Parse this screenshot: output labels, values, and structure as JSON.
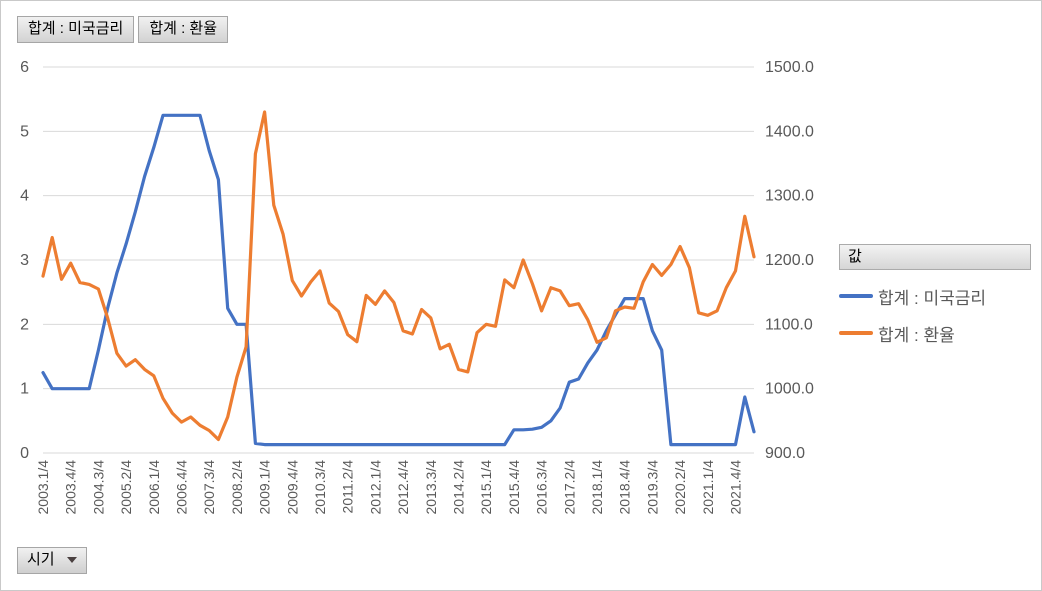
{
  "field_buttons": [
    {
      "label": "합계 : 미국금리"
    },
    {
      "label": "합계 : 환율"
    }
  ],
  "legend": {
    "header": "값",
    "items": [
      {
        "label": "합계 : 미국금리",
        "color": "#4472C4"
      },
      {
        "label": "합계 : 환율",
        "color": "#ED7D31"
      }
    ]
  },
  "axis_field_button": {
    "label": "시기"
  },
  "colors": {
    "grid": "#D9D9D9",
    "tick_label": "#595959",
    "series_blue": "#4472C4",
    "series_orange": "#ED7D31"
  },
  "chart_data": {
    "type": "line",
    "title": "",
    "legend_position": "right",
    "grid": true,
    "x_label_every": 3,
    "left_axis": {
      "min": 0,
      "max": 6,
      "ticks": [
        "0",
        "1",
        "2",
        "3",
        "4",
        "5",
        "6"
      ]
    },
    "right_axis": {
      "min": 900,
      "max": 1500,
      "ticks": [
        "900.0",
        "1000.0",
        "1100.0",
        "1200.0",
        "1300.0",
        "1400.0",
        "1500.0"
      ]
    },
    "categories": [
      "2003.1/4",
      "2003.2/4",
      "2003.3/4",
      "2003.4/4",
      "2004.1/4",
      "2004.2/4",
      "2004.3/4",
      "2004.4/4",
      "2005.1/4",
      "2005.2/4",
      "2005.3/4",
      "2005.4/4",
      "2006.1/4",
      "2006.2/4",
      "2006.3/4",
      "2006.4/4",
      "2007.1/4",
      "2007.2/4",
      "2007.3/4",
      "2007.4/4",
      "2008.1/4",
      "2008.2/4",
      "2008.3/4",
      "2008.4/4",
      "2009.1/4",
      "2009.2/4",
      "2009.3/4",
      "2009.4/4",
      "2010.1/4",
      "2010.2/4",
      "2010.3/4",
      "2010.4/4",
      "2011.1/4",
      "2011.2/4",
      "2011.3/4",
      "2011.4/4",
      "2012.1/4",
      "2012.2/4",
      "2012.3/4",
      "2012.4/4",
      "2013.1/4",
      "2013.2/4",
      "2013.3/4",
      "2013.4/4",
      "2014.1/4",
      "2014.2/4",
      "2014.3/4",
      "2014.4/4",
      "2015.1/4",
      "2015.2/4",
      "2015.3/4",
      "2015.4/4",
      "2016.1/4",
      "2016.2/4",
      "2016.3/4",
      "2016.4/4",
      "2017.1/4",
      "2017.2/4",
      "2017.3/4",
      "2017.4/4",
      "2018.1/4",
      "2018.2/4",
      "2018.3/4",
      "2018.4/4",
      "2019.1/4",
      "2019.2/4",
      "2019.3/4",
      "2019.4/4",
      "2020.1/4",
      "2020.2/4",
      "2020.3/4",
      "2020.4/4",
      "2021.1/4",
      "2021.2/4",
      "2021.3/4",
      "2021.4/4",
      "2022.1/4",
      "2022.2/4"
    ],
    "series": [
      {
        "name": "합계 : 미국금리",
        "axis": "left",
        "color": "#4472C4",
        "values": [
          1.25,
          1.0,
          1.0,
          1.0,
          1.0,
          1.0,
          1.6,
          2.25,
          2.8,
          3.25,
          3.75,
          4.3,
          4.75,
          5.25,
          5.25,
          5.25,
          5.25,
          5.25,
          4.7,
          4.25,
          2.25,
          2.0,
          2.0,
          0.15,
          0.13,
          0.13,
          0.13,
          0.13,
          0.13,
          0.13,
          0.13,
          0.13,
          0.13,
          0.13,
          0.13,
          0.13,
          0.13,
          0.13,
          0.13,
          0.13,
          0.13,
          0.13,
          0.13,
          0.13,
          0.13,
          0.13,
          0.13,
          0.13,
          0.13,
          0.13,
          0.13,
          0.36,
          0.36,
          0.37,
          0.4,
          0.5,
          0.7,
          1.1,
          1.15,
          1.4,
          1.6,
          1.9,
          2.15,
          2.4,
          2.4,
          2.4,
          1.9,
          1.6,
          0.13,
          0.13,
          0.13,
          0.13,
          0.13,
          0.13,
          0.13,
          0.13,
          0.87,
          0.33
        ]
      },
      {
        "name": "합계 : 환율",
        "axis": "right",
        "color": "#ED7D31",
        "values": [
          1175,
          1235,
          1170,
          1195,
          1165,
          1162,
          1155,
          1110,
          1055,
          1035,
          1045,
          1030,
          1020,
          985,
          962,
          948,
          956,
          943,
          935,
          921,
          956,
          1018,
          1065,
          1365,
          1430,
          1285,
          1240,
          1168,
          1144,
          1166,
          1183,
          1133,
          1120,
          1084,
          1073,
          1145,
          1131,
          1152,
          1134,
          1090,
          1085,
          1123,
          1110,
          1062,
          1069,
          1030,
          1026,
          1087,
          1100,
          1097,
          1169,
          1157,
          1200,
          1163,
          1121,
          1157,
          1152,
          1129,
          1132,
          1107,
          1072,
          1079,
          1121,
          1127,
          1125,
          1166,
          1193,
          1176,
          1193,
          1221,
          1188,
          1118,
          1114,
          1121,
          1157,
          1183,
          1268,
          1205
        ]
      }
    ]
  }
}
